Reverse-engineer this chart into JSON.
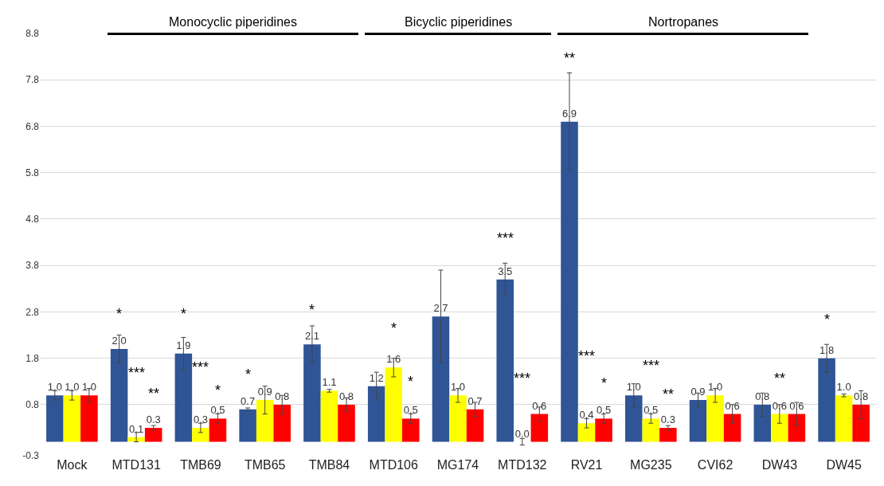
{
  "chart_data": {
    "type": "bar",
    "categories": [
      "Mock",
      "MTD131",
      "TMB69",
      "TMB65",
      "TMB84",
      "MTD106",
      "MG174",
      "MTD132",
      "RV21",
      "MG235",
      "CVI62",
      "DW43",
      "DW45"
    ],
    "series": [
      {
        "color": "#2f5597",
        "values": [
          1.0,
          2.0,
          1.9,
          0.7,
          2.1,
          1.2,
          2.7,
          3.5,
          6.9,
          1.0,
          0.9,
          0.8,
          1.8
        ],
        "value_labels": [
          "1.0",
          "2.0",
          "1.9",
          "0.7",
          "2.1",
          "1.2",
          "2.7",
          "3.5",
          "6.9",
          "1.0",
          "0.9",
          "0.8",
          "1.8"
        ],
        "errors": [
          0.1,
          0.3,
          0.35,
          0.03,
          0.4,
          0.3,
          1.0,
          0.35,
          1.05,
          0.25,
          0.15,
          0.25,
          0.3
        ]
      },
      {
        "color": "#ffff00",
        "values": [
          1.0,
          0.1,
          0.3,
          0.9,
          1.1,
          1.6,
          1.0,
          0.0,
          0.4,
          0.5,
          1.0,
          0.6,
          1.0
        ],
        "value_labels": [
          "1.0",
          "0.1",
          "0.3",
          "0.9",
          "1.1",
          "1.6",
          "1.0",
          "0.0",
          "0.4",
          "0.5",
          "1.0",
          "0.6",
          "1.0"
        ],
        "errors": [
          0.1,
          0.1,
          0.1,
          0.3,
          0.03,
          0.2,
          0.15,
          0.07,
          0.1,
          0.1,
          0.15,
          0.2,
          0.03
        ]
      },
      {
        "color": "#ff0000",
        "values": [
          1.0,
          0.3,
          0.5,
          0.8,
          0.8,
          0.5,
          0.7,
          0.6,
          0.5,
          0.3,
          0.6,
          0.6,
          0.8
        ],
        "value_labels": [
          "1.0",
          "0.3",
          "0.5",
          "0.8",
          "0.8",
          "0.5",
          "0.7",
          "0.6",
          "0.5",
          "0.3",
          "0.6",
          "0.6",
          "0.8"
        ],
        "errors": [
          0.15,
          0.05,
          0.1,
          0.2,
          0.15,
          0.1,
          0.15,
          0.15,
          0.1,
          0.05,
          0.2,
          0.25,
          0.3
        ]
      }
    ],
    "ylim": [
      -0.3,
      8.8
    ],
    "yticks": [
      -0.3,
      0.8,
      1.8,
      2.8,
      3.8,
      4.8,
      5.8,
      6.8,
      7.8,
      8.8
    ],
    "grid": "y",
    "annotations": [
      "Monocyclic piperidines",
      "Bicyclic piperidines",
      "Nortropanes",
      "*",
      "***",
      "**",
      "*",
      "***",
      "*",
      "*",
      "*",
      "*",
      "*",
      "***",
      "***",
      "**",
      "***",
      "*",
      "***",
      "**",
      "**",
      "*"
    ]
  }
}
